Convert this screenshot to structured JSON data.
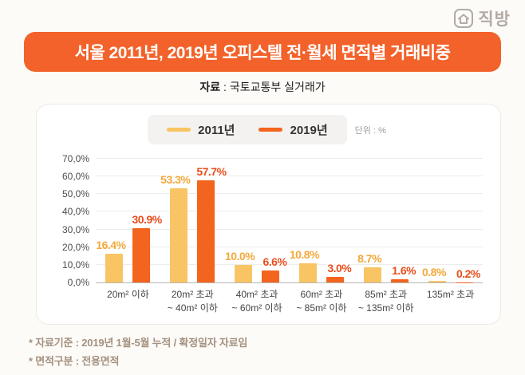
{
  "logo": {
    "text": "직방"
  },
  "header": {
    "title": "서울 2011년, 2019년 오피스텔 전·월세 면적별 거래비중"
  },
  "source": {
    "label": "자료",
    "rest": " : 국토교통부 실거래가"
  },
  "legend": {
    "items": [
      {
        "label": "2011년"
      },
      {
        "label": "2019년"
      }
    ],
    "unit": "단위 : %"
  },
  "chart_data": {
    "type": "bar",
    "title": "서울 2011년, 2019년 오피스텔 전·월세 면적별 거래비중",
    "unit": "%",
    "categories": [
      [
        "20m² 이하"
      ],
      [
        "20m² 초과",
        "~ 40m² 이하"
      ],
      [
        "40m² 초과",
        "~ 60m² 이하"
      ],
      [
        "60m² 초과",
        "~ 85m² 이하"
      ],
      [
        "85m² 초과",
        "~ 135m² 이하"
      ],
      [
        "135m² 초과"
      ]
    ],
    "series": [
      {
        "name": "2011년",
        "values": [
          16.4,
          53.3,
          10.0,
          10.8,
          8.7,
          0.8
        ],
        "labels": [
          "16.4%",
          "53.3%",
          "10.0%",
          "10.8%",
          "8.7%",
          "0.8%"
        ]
      },
      {
        "name": "2019년",
        "values": [
          30.9,
          57.7,
          6.6,
          3.0,
          1.6,
          0.2
        ],
        "labels": [
          "30.9%",
          "57.7%",
          "6.6%",
          "3.0%",
          "1.6%",
          "0.2%"
        ]
      }
    ],
    "y_ticks": [
      "0,0%",
      "10,0%",
      "20,0%",
      "30,0%",
      "40,0%",
      "50,0%",
      "60,0%",
      "70,0%"
    ],
    "ylim": [
      0,
      70
    ],
    "grid": true,
    "legend_position": "top"
  },
  "footnotes": [
    "* 자료기준 : 2019년 1월-5월 누적 / 확정일자 자료임",
    "* 면적구분 : 전용면적"
  ],
  "colors": {
    "banner": "#f2622a",
    "bar_2011": "#f9c564",
    "bar_2019": "#f3641f",
    "label_2011": "#f2a93b",
    "label_2019": "#e84e1d",
    "logo": "#b2aba5",
    "footnote": "#a4917f"
  }
}
